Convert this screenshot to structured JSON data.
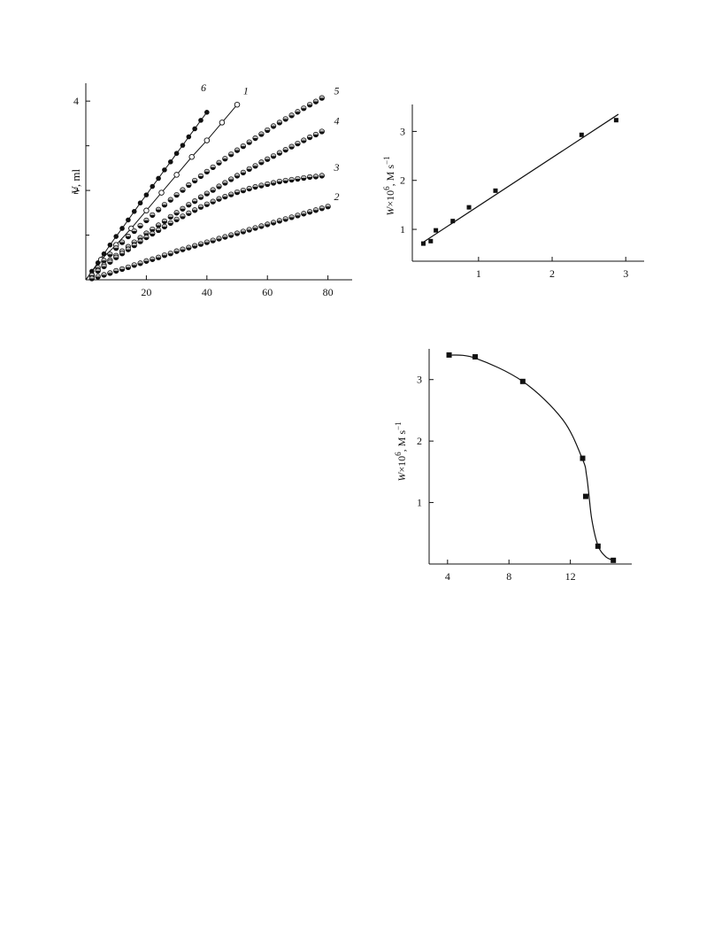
{
  "chart_data": [
    {
      "id": "chart1",
      "type": "scatter",
      "ylabel_italic": "V",
      "ylabel_rest": ", ml",
      "xlim": [
        0,
        88
      ],
      "ylim": [
        0,
        4.4
      ],
      "xticks": [
        20,
        40,
        60,
        80
      ],
      "yticks": [
        2,
        4
      ],
      "yminor": [
        1,
        3
      ],
      "series": [
        {
          "name": "6",
          "marker": "filled",
          "label_at": [
            38,
            4.22
          ],
          "x": [
            2,
            4,
            6,
            8,
            10,
            12,
            14,
            16,
            18,
            20,
            22,
            24,
            26,
            28,
            30,
            32,
            34,
            36,
            38,
            40
          ],
          "y": [
            0.19,
            0.38,
            0.58,
            0.78,
            0.97,
            1.15,
            1.34,
            1.53,
            1.72,
            1.9,
            2.09,
            2.27,
            2.46,
            2.64,
            2.83,
            3.01,
            3.2,
            3.38,
            3.57,
            3.75
          ]
        },
        {
          "name": "1",
          "marker": "open",
          "label_at": [
            52,
            4.15
          ],
          "x": [
            5,
            10,
            15,
            20,
            25,
            30,
            35,
            40,
            45,
            50
          ],
          "y": [
            0.45,
            0.78,
            1.15,
            1.55,
            1.95,
            2.35,
            2.75,
            3.12,
            3.52,
            3.92
          ]
        },
        {
          "name": "5",
          "marker": "half",
          "label_at": [
            82,
            4.15
          ],
          "x": [
            2,
            4,
            6,
            8,
            10,
            12,
            14,
            16,
            18,
            20,
            22,
            24,
            26,
            28,
            30,
            32,
            34,
            36,
            38,
            40,
            42,
            44,
            46,
            48,
            50,
            52,
            54,
            56,
            58,
            60,
            62,
            64,
            66,
            68,
            70,
            72,
            74,
            76,
            78
          ],
          "y": [
            0.09,
            0.27,
            0.43,
            0.57,
            0.71,
            0.84,
            0.97,
            1.09,
            1.21,
            1.33,
            1.45,
            1.57,
            1.68,
            1.79,
            1.9,
            2.01,
            2.12,
            2.22,
            2.32,
            2.42,
            2.52,
            2.62,
            2.71,
            2.81,
            2.9,
            2.99,
            3.08,
            3.17,
            3.26,
            3.35,
            3.44,
            3.52,
            3.6,
            3.68,
            3.76,
            3.84,
            3.92,
            3.99,
            4.07
          ]
        },
        {
          "name": "4",
          "marker": "half",
          "label_at": [
            82,
            3.48
          ],
          "x": [
            2,
            4,
            6,
            8,
            10,
            12,
            14,
            16,
            18,
            20,
            22,
            24,
            26,
            28,
            30,
            32,
            34,
            36,
            38,
            40,
            42,
            44,
            46,
            48,
            50,
            52,
            54,
            56,
            58,
            60,
            62,
            64,
            66,
            68,
            70,
            72,
            74,
            76,
            78
          ],
          "y": [
            0.11,
            0.22,
            0.33,
            0.44,
            0.54,
            0.64,
            0.74,
            0.84,
            0.94,
            1.04,
            1.13,
            1.22,
            1.31,
            1.41,
            1.5,
            1.59,
            1.68,
            1.76,
            1.85,
            1.93,
            2.01,
            2.09,
            2.17,
            2.25,
            2.33,
            2.4,
            2.48,
            2.55,
            2.63,
            2.7,
            2.77,
            2.84,
            2.91,
            2.98,
            3.05,
            3.12,
            3.19,
            3.25,
            3.32
          ]
        },
        {
          "name": "3",
          "marker": "half",
          "label_at": [
            82,
            2.44
          ],
          "x": [
            2,
            4,
            6,
            8,
            10,
            12,
            14,
            16,
            18,
            20,
            22,
            24,
            26,
            28,
            30,
            32,
            34,
            36,
            38,
            40,
            42,
            44,
            46,
            48,
            50,
            52,
            54,
            56,
            58,
            60,
            62,
            64,
            66,
            68,
            70,
            72,
            74,
            76,
            78
          ],
          "y": [
            0.1,
            0.2,
            0.3,
            0.4,
            0.5,
            0.59,
            0.68,
            0.77,
            0.86,
            0.95,
            1.03,
            1.11,
            1.19,
            1.27,
            1.35,
            1.42,
            1.49,
            1.56,
            1.63,
            1.69,
            1.75,
            1.81,
            1.86,
            1.91,
            1.96,
            2.0,
            2.04,
            2.08,
            2.11,
            2.14,
            2.17,
            2.2,
            2.22,
            2.24,
            2.26,
            2.28,
            2.3,
            2.31,
            2.33
          ]
        },
        {
          "name": "2",
          "marker": "half",
          "label_at": [
            82,
            1.78
          ],
          "x": [
            2,
            4,
            6,
            8,
            10,
            12,
            14,
            16,
            18,
            20,
            22,
            24,
            26,
            28,
            30,
            32,
            34,
            36,
            38,
            40,
            42,
            44,
            46,
            48,
            50,
            52,
            54,
            56,
            58,
            60,
            62,
            64,
            66,
            68,
            70,
            72,
            74,
            76,
            78,
            80
          ],
          "y": [
            0.03,
            0.07,
            0.11,
            0.15,
            0.2,
            0.24,
            0.28,
            0.33,
            0.37,
            0.42,
            0.46,
            0.5,
            0.55,
            0.59,
            0.64,
            0.68,
            0.72,
            0.76,
            0.8,
            0.84,
            0.88,
            0.92,
            0.96,
            1.0,
            1.04,
            1.08,
            1.12,
            1.16,
            1.2,
            1.24,
            1.28,
            1.32,
            1.36,
            1.4,
            1.44,
            1.48,
            1.52,
            1.56,
            1.6,
            1.64
          ]
        }
      ]
    },
    {
      "id": "chart2",
      "type": "scatter",
      "ylabel_italic": "W",
      "ylabel_rest": "×10",
      "ylabel_sup": "6",
      "ylabel_rest2": ", M s",
      "ylabel_sup2": "−1",
      "xlim": [
        0.1,
        3.25
      ],
      "ylim": [
        0.35,
        3.55
      ],
      "xticks": [
        1,
        2,
        3
      ],
      "yticks": [
        1,
        2,
        3
      ],
      "x": [
        0.25,
        0.35,
        0.42,
        0.65,
        0.87,
        1.23,
        2.4,
        2.87
      ],
      "y": [
        0.71,
        0.76,
        0.98,
        1.17,
        1.45,
        1.79,
        2.93,
        3.23
      ],
      "fit_line": {
        "x": [
          0.22,
          2.9
        ],
        "y": [
          0.71,
          3.35
        ]
      }
    },
    {
      "id": "chart3",
      "type": "scatter",
      "ylabel_italic": "W",
      "ylabel_rest": "×10",
      "ylabel_sup": "6",
      "ylabel_rest2": ", M s",
      "ylabel_sup2": "−1",
      "xlim": [
        2.8,
        16
      ],
      "ylim": [
        0,
        3.5
      ],
      "xticks": [
        4,
        8,
        12
      ],
      "yticks": [
        1,
        2,
        3
      ],
      "x": [
        4.1,
        5.8,
        8.9,
        12.8,
        13.0,
        13.8,
        14.8
      ],
      "y": [
        3.4,
        3.37,
        2.97,
        1.72,
        1.1,
        0.29,
        0.06
      ],
      "fit_curve": {
        "x": [
          4.1,
          5.8,
          8.9,
          11.5,
          12.8,
          13.05,
          13.2,
          13.4,
          13.8,
          14.3,
          14.8
        ],
        "y": [
          3.4,
          3.35,
          2.97,
          2.35,
          1.7,
          1.45,
          1.15,
          0.72,
          0.3,
          0.12,
          0.06
        ]
      }
    }
  ]
}
